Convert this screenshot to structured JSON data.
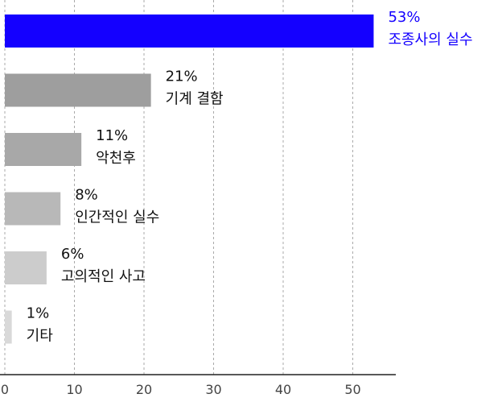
{
  "chart_data": {
    "type": "bar",
    "orientation": "horizontal",
    "xlim": [
      0,
      55
    ],
    "x_ticks": [
      "0",
      "10",
      "20",
      "30",
      "40",
      "50"
    ],
    "grid": "vertical-dashed",
    "bars": [
      {
        "category": "조종사의 실수",
        "value": 53,
        "label": "53%",
        "color": "#1400ff",
        "label_color": "#1400ff"
      },
      {
        "category": "기계 결함",
        "value": 21,
        "label": "21%",
        "color": "#9e9e9e",
        "label_color": "#111111"
      },
      {
        "category": "악천후",
        "value": 11,
        "label": "11%",
        "color": "#a8a8a8",
        "label_color": "#111111"
      },
      {
        "category": "인간적인 실수",
        "value": 8,
        "label": "8%",
        "color": "#b8b8b8",
        "label_color": "#111111"
      },
      {
        "category": "고의적인 사고",
        "value": 6,
        "label": "6%",
        "color": "#cccccc",
        "label_color": "#111111"
      },
      {
        "category": "기타",
        "value": 1,
        "label": "1%",
        "color": "#d9d9d9",
        "label_color": "#111111"
      }
    ]
  }
}
